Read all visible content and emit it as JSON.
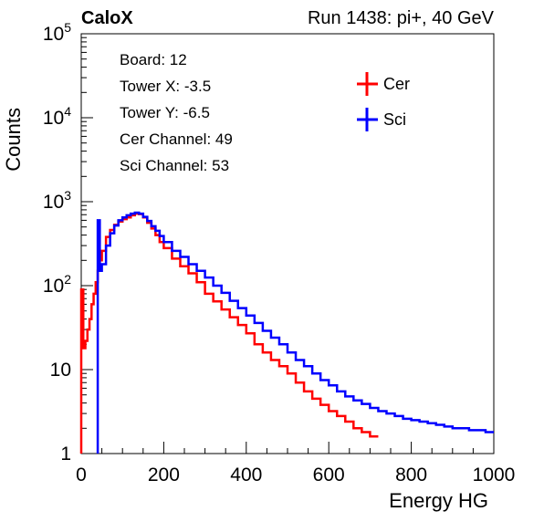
{
  "header": {
    "experiment": "CaloX",
    "run_info": "Run 1438: pi+, 40 GeV"
  },
  "info_box": [
    "Board: 12",
    "Tower X: -3.5",
    "Tower Y: -6.5",
    "Cer Channel: 49",
    "Sci Channel: 53"
  ],
  "chart_data": {
    "type": "line",
    "title": "",
    "xlabel": "Energy HG",
    "ylabel": "Counts",
    "xlim": [
      0,
      1000
    ],
    "ylim": [
      1,
      100000
    ],
    "y_scale": "log",
    "x_ticks": [
      "0",
      "200",
      "400",
      "600",
      "800",
      "1000"
    ],
    "y_ticks": [
      {
        "base": "1",
        "exp": ""
      },
      {
        "base": "10",
        "exp": ""
      },
      {
        "base": "10",
        "exp": "2"
      },
      {
        "base": "10",
        "exp": "3"
      },
      {
        "base": "10",
        "exp": "4"
      },
      {
        "base": "10",
        "exp": "5"
      }
    ],
    "grid": false,
    "legend_position": "top-right",
    "series": [
      {
        "name": "Cer",
        "color": "#ff0000",
        "style": "step-histogram",
        "points": [
          [
            0,
            90
          ],
          [
            5,
            18
          ],
          [
            10,
            22
          ],
          [
            15,
            30
          ],
          [
            20,
            40
          ],
          [
            25,
            60
          ],
          [
            30,
            80
          ],
          [
            35,
            110
          ],
          [
            40,
            150
          ],
          [
            45,
            200
          ],
          [
            50,
            260
          ],
          [
            60,
            380
          ],
          [
            70,
            460
          ],
          [
            80,
            530
          ],
          [
            90,
            580
          ],
          [
            100,
            620
          ],
          [
            110,
            650
          ],
          [
            120,
            690
          ],
          [
            130,
            720
          ],
          [
            140,
            710
          ],
          [
            150,
            650
          ],
          [
            160,
            560
          ],
          [
            170,
            480
          ],
          [
            180,
            400
          ],
          [
            190,
            330
          ],
          [
            200,
            280
          ],
          [
            220,
            210
          ],
          [
            240,
            170
          ],
          [
            260,
            140
          ],
          [
            280,
            110
          ],
          [
            300,
            80
          ],
          [
            320,
            65
          ],
          [
            340,
            52
          ],
          [
            360,
            42
          ],
          [
            380,
            34
          ],
          [
            400,
            27
          ],
          [
            420,
            20
          ],
          [
            440,
            16
          ],
          [
            460,
            13
          ],
          [
            480,
            11
          ],
          [
            500,
            9
          ],
          [
            520,
            7
          ],
          [
            540,
            5.5
          ],
          [
            560,
            4.5
          ],
          [
            580,
            3.8
          ],
          [
            600,
            3.2
          ],
          [
            620,
            2.8
          ],
          [
            640,
            2.4
          ],
          [
            660,
            2.0
          ],
          [
            680,
            1.8
          ],
          [
            700,
            1.6
          ]
        ]
      },
      {
        "name": "Sci",
        "color": "#0000ff",
        "style": "step-histogram",
        "points": [
          [
            40,
            600
          ],
          [
            45,
            150
          ],
          [
            50,
            180
          ],
          [
            60,
            300
          ],
          [
            70,
            420
          ],
          [
            80,
            520
          ],
          [
            90,
            600
          ],
          [
            100,
            650
          ],
          [
            110,
            690
          ],
          [
            120,
            720
          ],
          [
            130,
            740
          ],
          [
            140,
            720
          ],
          [
            150,
            660
          ],
          [
            160,
            590
          ],
          [
            170,
            510
          ],
          [
            180,
            450
          ],
          [
            190,
            390
          ],
          [
            200,
            330
          ],
          [
            220,
            260
          ],
          [
            240,
            220
          ],
          [
            260,
            180
          ],
          [
            280,
            150
          ],
          [
            300,
            125
          ],
          [
            320,
            100
          ],
          [
            340,
            82
          ],
          [
            360,
            66
          ],
          [
            380,
            54
          ],
          [
            400,
            44
          ],
          [
            420,
            36
          ],
          [
            440,
            29
          ],
          [
            460,
            24
          ],
          [
            480,
            20
          ],
          [
            500,
            16
          ],
          [
            520,
            13
          ],
          [
            540,
            11
          ],
          [
            560,
            9
          ],
          [
            580,
            7.5
          ],
          [
            600,
            6.5
          ],
          [
            620,
            5.5
          ],
          [
            640,
            4.8
          ],
          [
            660,
            4.3
          ],
          [
            680,
            3.9
          ],
          [
            700,
            3.5
          ],
          [
            720,
            3.2
          ],
          [
            740,
            3.0
          ],
          [
            760,
            2.8
          ],
          [
            780,
            2.6
          ],
          [
            800,
            2.5
          ],
          [
            820,
            2.4
          ],
          [
            840,
            2.3
          ],
          [
            860,
            2.2
          ],
          [
            880,
            2.1
          ],
          [
            900,
            2.0
          ],
          [
            920,
            2.0
          ],
          [
            940,
            1.9
          ],
          [
            960,
            1.9
          ],
          [
            980,
            1.8
          ],
          [
            1000,
            1.8
          ]
        ]
      }
    ]
  }
}
